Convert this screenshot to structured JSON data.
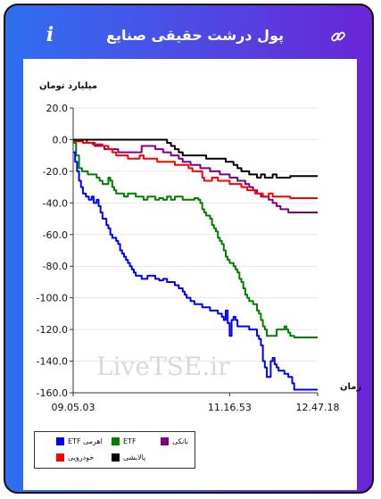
{
  "header": {
    "title": "پول درشت حقیقی صنایع",
    "info_symbol": "i"
  },
  "watermark": "LiveTSE.ir",
  "chart_data": {
    "type": "line",
    "title": "",
    "ylabel": "میلیارد تومان",
    "xlabel": "زمان",
    "ylim": [
      -160,
      20
    ],
    "yticks": [
      "20.0",
      "0.0",
      "-20.0",
      "-40.0",
      "-60.0",
      "-80.0",
      "-100.0",
      "-120.0",
      "-140.0",
      "-160.0"
    ],
    "ytick_values": [
      20,
      0,
      -20,
      -40,
      -60,
      -80,
      -100,
      -120,
      -140,
      -160
    ],
    "xlim": [
      0,
      250
    ],
    "xticks": [
      "09.05.03",
      "11.16.53",
      "12.47.18"
    ],
    "xtick_values": [
      0,
      160,
      250
    ],
    "grid": "horizontal",
    "legend_position": "bottom-left",
    "series": [
      {
        "name": "ETF اهرمی",
        "color": "#0000ff",
        "points": [
          [
            0,
            -8
          ],
          [
            2,
            -14
          ],
          [
            4,
            -20
          ],
          [
            6,
            -26
          ],
          [
            8,
            -30
          ],
          [
            10,
            -34
          ],
          [
            13,
            -36
          ],
          [
            16,
            -38
          ],
          [
            19,
            -36
          ],
          [
            21,
            -40
          ],
          [
            24,
            -38
          ],
          [
            26,
            -42
          ],
          [
            28,
            -46
          ],
          [
            30,
            -50
          ],
          [
            32,
            -50
          ],
          [
            34,
            -54
          ],
          [
            36,
            -56
          ],
          [
            38,
            -60
          ],
          [
            40,
            -62
          ],
          [
            42,
            -62
          ],
          [
            44,
            -64
          ],
          [
            46,
            -66
          ],
          [
            48,
            -70
          ],
          [
            50,
            -72
          ],
          [
            52,
            -74
          ],
          [
            54,
            -76
          ],
          [
            56,
            -78
          ],
          [
            58,
            -80
          ],
          [
            60,
            -82
          ],
          [
            62,
            -84
          ],
          [
            64,
            -86
          ],
          [
            66,
            -86
          ],
          [
            68,
            -86
          ],
          [
            70,
            -88
          ],
          [
            74,
            -88
          ],
          [
            76,
            -86
          ],
          [
            80,
            -86
          ],
          [
            84,
            -88
          ],
          [
            88,
            -89
          ],
          [
            92,
            -88
          ],
          [
            96,
            -90
          ],
          [
            100,
            -90
          ],
          [
            104,
            -92
          ],
          [
            108,
            -94
          ],
          [
            112,
            -96
          ],
          [
            114,
            -98
          ],
          [
            116,
            -100
          ],
          [
            120,
            -102
          ],
          [
            124,
            -104
          ],
          [
            128,
            -104
          ],
          [
            132,
            -106
          ],
          [
            136,
            -106
          ],
          [
            140,
            -108
          ],
          [
            144,
            -108
          ],
          [
            148,
            -110
          ],
          [
            152,
            -112
          ],
          [
            154,
            -114
          ],
          [
            156,
            -108
          ],
          [
            158,
            -116
          ],
          [
            160,
            -124
          ],
          [
            162,
            -114
          ],
          [
            164,
            -112
          ],
          [
            166,
            -114
          ],
          [
            168,
            -118
          ],
          [
            172,
            -118
          ],
          [
            176,
            -118
          ],
          [
            180,
            -120
          ],
          [
            184,
            -120
          ],
          [
            188,
            -124
          ],
          [
            190,
            -126
          ],
          [
            192,
            -130
          ],
          [
            194,
            -140
          ],
          [
            196,
            -144
          ],
          [
            198,
            -150
          ],
          [
            200,
            -150
          ],
          [
            202,
            -140
          ],
          [
            204,
            -138
          ],
          [
            206,
            -142
          ],
          [
            208,
            -144
          ],
          [
            210,
            -146
          ],
          [
            212,
            -146
          ],
          [
            216,
            -148
          ],
          [
            220,
            -150
          ],
          [
            222,
            -150
          ],
          [
            224,
            -154
          ],
          [
            226,
            -158
          ],
          [
            250,
            -158
          ]
        ]
      },
      {
        "name": "ETF",
        "color": "#008000",
        "points": [
          [
            0,
            -2
          ],
          [
            3,
            -10
          ],
          [
            6,
            -18
          ],
          [
            9,
            -20
          ],
          [
            12,
            -20
          ],
          [
            15,
            -22
          ],
          [
            18,
            -22
          ],
          [
            21,
            -22
          ],
          [
            24,
            -24
          ],
          [
            27,
            -26
          ],
          [
            30,
            -28
          ],
          [
            33,
            -28
          ],
          [
            36,
            -24
          ],
          [
            38,
            -26
          ],
          [
            40,
            -30
          ],
          [
            42,
            -32
          ],
          [
            44,
            -34
          ],
          [
            48,
            -34
          ],
          [
            52,
            -36
          ],
          [
            56,
            -34
          ],
          [
            60,
            -34
          ],
          [
            64,
            -36
          ],
          [
            68,
            -36
          ],
          [
            72,
            -38
          ],
          [
            76,
            -36
          ],
          [
            80,
            -36
          ],
          [
            84,
            -38
          ],
          [
            88,
            -37
          ],
          [
            92,
            -38
          ],
          [
            96,
            -36
          ],
          [
            100,
            -38
          ],
          [
            104,
            -36
          ],
          [
            108,
            -36
          ],
          [
            112,
            -38
          ],
          [
            116,
            -38
          ],
          [
            120,
            -38
          ],
          [
            124,
            -37
          ],
          [
            128,
            -38
          ],
          [
            130,
            -40
          ],
          [
            132,
            -44
          ],
          [
            134,
            -46
          ],
          [
            136,
            -48
          ],
          [
            138,
            -48
          ],
          [
            140,
            -50
          ],
          [
            142,
            -54
          ],
          [
            144,
            -56
          ],
          [
            146,
            -58
          ],
          [
            148,
            -62
          ],
          [
            150,
            -64
          ],
          [
            152,
            -66
          ],
          [
            154,
            -70
          ],
          [
            156,
            -74
          ],
          [
            158,
            -76
          ],
          [
            160,
            -78
          ],
          [
            162,
            -78
          ],
          [
            164,
            -80
          ],
          [
            166,
            -82
          ],
          [
            168,
            -84
          ],
          [
            170,
            -88
          ],
          [
            172,
            -90
          ],
          [
            174,
            -94
          ],
          [
            176,
            -98
          ],
          [
            178,
            -100
          ],
          [
            180,
            -102
          ],
          [
            184,
            -104
          ],
          [
            188,
            -108
          ],
          [
            190,
            -110
          ],
          [
            192,
            -114
          ],
          [
            194,
            -118
          ],
          [
            196,
            -120
          ],
          [
            198,
            -124
          ],
          [
            200,
            -124
          ],
          [
            206,
            -124
          ],
          [
            208,
            -120
          ],
          [
            210,
            -120
          ],
          [
            214,
            -120
          ],
          [
            216,
            -118
          ],
          [
            218,
            -120
          ],
          [
            220,
            -122
          ],
          [
            222,
            -124
          ],
          [
            226,
            -125
          ],
          [
            250,
            -125
          ]
        ]
      },
      {
        "name": "بانکی",
        "color": "#800080",
        "points": [
          [
            0,
            0
          ],
          [
            8,
            0
          ],
          [
            14,
            -2
          ],
          [
            18,
            -2
          ],
          [
            22,
            -4
          ],
          [
            28,
            -4
          ],
          [
            32,
            -6
          ],
          [
            40,
            -6
          ],
          [
            46,
            -8
          ],
          [
            52,
            -8
          ],
          [
            58,
            -8
          ],
          [
            64,
            -8
          ],
          [
            70,
            -4
          ],
          [
            78,
            -4
          ],
          [
            84,
            -6
          ],
          [
            88,
            -6
          ],
          [
            92,
            -8
          ],
          [
            96,
            -8
          ],
          [
            100,
            -10
          ],
          [
            104,
            -10
          ],
          [
            108,
            -12
          ],
          [
            112,
            -14
          ],
          [
            116,
            -14
          ],
          [
            120,
            -16
          ],
          [
            126,
            -16
          ],
          [
            130,
            -18
          ],
          [
            136,
            -18
          ],
          [
            140,
            -20
          ],
          [
            146,
            -20
          ],
          [
            150,
            -22
          ],
          [
            156,
            -22
          ],
          [
            160,
            -24
          ],
          [
            164,
            -24
          ],
          [
            168,
            -26
          ],
          [
            172,
            -26
          ],
          [
            176,
            -28
          ],
          [
            180,
            -30
          ],
          [
            184,
            -32
          ],
          [
            188,
            -34
          ],
          [
            192,
            -36
          ],
          [
            196,
            -36
          ],
          [
            200,
            -38
          ],
          [
            204,
            -40
          ],
          [
            208,
            -42
          ],
          [
            212,
            -44
          ],
          [
            216,
            -44
          ],
          [
            220,
            -46
          ],
          [
            224,
            -46
          ],
          [
            250,
            -46
          ]
        ]
      },
      {
        "name": "خودرویی",
        "color": "#ff0000",
        "points": [
          [
            0,
            -1
          ],
          [
            10,
            -2
          ],
          [
            20,
            -3
          ],
          [
            30,
            -4
          ],
          [
            36,
            -6
          ],
          [
            40,
            -8
          ],
          [
            44,
            -10
          ],
          [
            48,
            -10
          ],
          [
            54,
            -10
          ],
          [
            56,
            -12
          ],
          [
            66,
            -12
          ],
          [
            68,
            -10
          ],
          [
            72,
            -12
          ],
          [
            80,
            -12
          ],
          [
            86,
            -14
          ],
          [
            96,
            -14
          ],
          [
            104,
            -16
          ],
          [
            112,
            -16
          ],
          [
            118,
            -18
          ],
          [
            122,
            -20
          ],
          [
            126,
            -20
          ],
          [
            132,
            -24
          ],
          [
            134,
            -26
          ],
          [
            138,
            -26
          ],
          [
            142,
            -24
          ],
          [
            148,
            -26
          ],
          [
            154,
            -26
          ],
          [
            160,
            -28
          ],
          [
            166,
            -28
          ],
          [
            172,
            -30
          ],
          [
            178,
            -32
          ],
          [
            182,
            -32
          ],
          [
            186,
            -34
          ],
          [
            190,
            -34
          ],
          [
            194,
            -36
          ],
          [
            198,
            -36
          ],
          [
            200,
            -34
          ],
          [
            204,
            -36
          ],
          [
            210,
            -36
          ],
          [
            214,
            -36
          ],
          [
            218,
            -36
          ],
          [
            222,
            -37
          ],
          [
            250,
            -37
          ]
        ]
      },
      {
        "name": "پالایشی",
        "color": "#000000",
        "points": [
          [
            0,
            0
          ],
          [
            20,
            0
          ],
          [
            40,
            0
          ],
          [
            60,
            0
          ],
          [
            80,
            0
          ],
          [
            90,
            0
          ],
          [
            96,
            -2
          ],
          [
            100,
            -4
          ],
          [
            104,
            -6
          ],
          [
            108,
            -8
          ],
          [
            112,
            -10
          ],
          [
            116,
            -10
          ],
          [
            120,
            -10
          ],
          [
            124,
            -10
          ],
          [
            128,
            -10
          ],
          [
            132,
            -10
          ],
          [
            136,
            -12
          ],
          [
            140,
            -12
          ],
          [
            144,
            -12
          ],
          [
            148,
            -12
          ],
          [
            152,
            -12
          ],
          [
            156,
            -14
          ],
          [
            160,
            -14
          ],
          [
            164,
            -16
          ],
          [
            168,
            -18
          ],
          [
            172,
            -20
          ],
          [
            176,
            -20
          ],
          [
            180,
            -22
          ],
          [
            184,
            -22
          ],
          [
            188,
            -24
          ],
          [
            192,
            -22
          ],
          [
            196,
            -24
          ],
          [
            200,
            -24
          ],
          [
            204,
            -22
          ],
          [
            208,
            -24
          ],
          [
            212,
            -24
          ],
          [
            216,
            -24
          ],
          [
            222,
            -23
          ],
          [
            226,
            -23
          ],
          [
            230,
            -23
          ],
          [
            234,
            -23
          ],
          [
            240,
            -23
          ],
          [
            250,
            -23
          ]
        ]
      }
    ]
  }
}
